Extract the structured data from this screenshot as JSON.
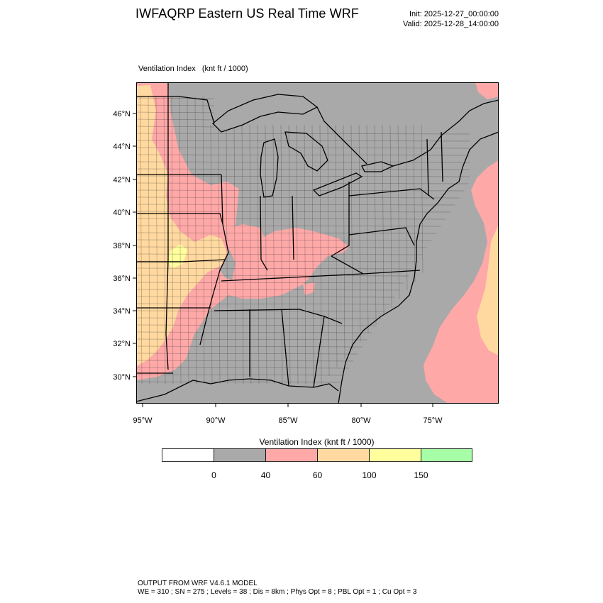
{
  "header": {
    "title": "IWFAQRP Eastern US Real Time WRF",
    "init": "Init: 2025-12-27_00:00:00",
    "valid": "Valid: 2025-12-28_14:00:00"
  },
  "field": {
    "label": "Ventilation Index   (knt ft / 1000)"
  },
  "map": {
    "lat_ticks": [
      "46°N",
      "44°N",
      "42°N",
      "40°N",
      "38°N",
      "36°N",
      "34°N",
      "32°N",
      "30°N"
    ],
    "lon_ticks": [
      "95°W",
      "90°W",
      "85°W",
      "80°W",
      "75°W"
    ]
  },
  "legend": {
    "title": "Ventilation Index  (knt ft / 1000)",
    "ticks": [
      "0",
      "40",
      "60",
      "100",
      "150"
    ],
    "colors": [
      "#ffffff",
      "#a9a9a9",
      "#ffa8a8",
      "#ffd9a0",
      "#ffff9e",
      "#a6ffa6"
    ]
  },
  "colors": {
    "land_low": "#a9a9a9",
    "pink": "#ffa8a8",
    "orange": "#ffd9a0",
    "yellow": "#ffff9e"
  },
  "footer": {
    "line1": "OUTPUT FROM WRF V4.6.1 MODEL",
    "line2": "WE = 310 ; SN = 275 ; Levels = 38 ; Dis = 8km ; Phys Opt = 8 ; PBL Opt = 1 ; Cu Opt = 3"
  }
}
